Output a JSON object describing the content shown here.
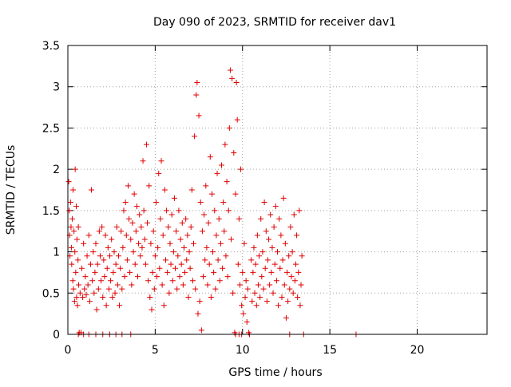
{
  "chart_data": {
    "type": "scatter",
    "title": "Day 090 of 2023, SRMTID for receiver dav1",
    "xlabel": "GPS time / hours",
    "ylabel": "SRMTID / TECUs",
    "xlim": [
      0,
      24
    ],
    "ylim": [
      0,
      3.5
    ],
    "x_ticks": [
      0,
      5,
      10,
      15,
      20
    ],
    "x_tick_labels": [
      "0",
      "5",
      "10",
      "15",
      "20"
    ],
    "y_ticks": [
      0,
      0.5,
      1,
      1.5,
      2,
      2.5,
      3,
      3.5
    ],
    "y_tick_labels": [
      "0",
      "0.5",
      "1",
      "1.5",
      "2",
      "2.5",
      "3",
      "3.5"
    ],
    "grid": true,
    "marker": "+",
    "color": "#e00000",
    "series": [
      {
        "name": "SRMTID",
        "points": [
          [
            0.05,
            1.85
          ],
          [
            0.08,
            1.5
          ],
          [
            0.1,
            1.2
          ],
          [
            0.12,
            0.95
          ],
          [
            0.15,
            1.6
          ],
          [
            0.18,
            1.3
          ],
          [
            0.2,
            1.05
          ],
          [
            0.22,
            0.85
          ],
          [
            0.25,
            1.4
          ],
          [
            0.28,
            0.65
          ],
          [
            0.3,
            1.75
          ],
          [
            0.32,
            0.55
          ],
          [
            0.35,
            1.25
          ],
          [
            0.38,
            0.4
          ],
          [
            0.4,
            1.0
          ],
          [
            0.42,
            2.0
          ],
          [
            0.45,
            0.75
          ],
          [
            0.48,
            1.55
          ],
          [
            0.5,
            0.45
          ],
          [
            0.52,
            1.15
          ],
          [
            0.55,
            0.35
          ],
          [
            0.58,
            0.9
          ],
          [
            0.6,
            1.3
          ],
          [
            0.62,
            0.6
          ],
          [
            0.65,
            0.02
          ],
          [
            0.7,
            0.5
          ],
          [
            0.75,
            0.02
          ],
          [
            0.8,
            0.8
          ],
          [
            0.85,
            0.45
          ],
          [
            0.9,
            1.1
          ],
          [
            0.95,
            0.55
          ],
          [
            1.0,
            0.7
          ],
          [
            1.05,
            0.48
          ],
          [
            1.1,
            0.95
          ],
          [
            1.15,
            0.6
          ],
          [
            1.2,
            1.2
          ],
          [
            1.25,
            0.4
          ],
          [
            1.3,
            0.85
          ],
          [
            1.35,
            1.75
          ],
          [
            1.4,
            0.65
          ],
          [
            1.45,
            1.0
          ],
          [
            1.5,
            0.5
          ],
          [
            1.55,
            0.75
          ],
          [
            1.6,
            1.1
          ],
          [
            1.65,
            0.3
          ],
          [
            1.7,
            0.85
          ],
          [
            1.75,
            0.55
          ],
          [
            1.8,
            1.25
          ],
          [
            1.85,
            0.95
          ],
          [
            1.9,
            0.65
          ],
          [
            1.95,
            1.3
          ],
          [
            2.0,
            0.45
          ],
          [
            2.05,
            0.9
          ],
          [
            2.1,
            0.7
          ],
          [
            2.15,
            1.2
          ],
          [
            2.2,
            0.35
          ],
          [
            2.25,
            0.8
          ],
          [
            2.3,
            1.05
          ],
          [
            2.35,
            0.55
          ],
          [
            2.4,
            0.95
          ],
          [
            2.45,
            0.65
          ],
          [
            2.5,
            1.15
          ],
          [
            2.55,
            0.45
          ],
          [
            2.6,
            0.75
          ],
          [
            2.65,
            1.0
          ],
          [
            2.7,
            0.5
          ],
          [
            2.75,
            0.85
          ],
          [
            2.8,
            1.3
          ],
          [
            2.85,
            0.6
          ],
          [
            2.9,
            0.95
          ],
          [
            2.95,
            0.35
          ],
          [
            3.0,
            0.8
          ],
          [
            3.05,
            1.25
          ],
          [
            3.1,
            0.55
          ],
          [
            3.15,
            1.05
          ],
          [
            3.2,
            1.5
          ],
          [
            3.25,
            0.7
          ],
          [
            3.3,
            1.6
          ],
          [
            3.35,
            1.2
          ],
          [
            3.4,
            0.9
          ],
          [
            3.45,
            1.8
          ],
          [
            3.5,
            1.4
          ],
          [
            3.55,
            0.75
          ],
          [
            3.6,
            1.15
          ],
          [
            3.65,
            0.6
          ],
          [
            3.7,
            1.35
          ],
          [
            3.75,
            1.0
          ],
          [
            3.8,
            1.7
          ],
          [
            3.85,
            0.85
          ],
          [
            3.9,
            1.25
          ],
          [
            3.95,
            1.55
          ],
          [
            4.0,
            0.7
          ],
          [
            4.05,
            1.1
          ],
          [
            4.1,
            1.45
          ],
          [
            4.15,
            0.95
          ],
          [
            4.2,
            1.3
          ],
          [
            4.25,
            1.05
          ],
          [
            4.3,
            2.1
          ],
          [
            4.35,
            1.5
          ],
          [
            4.4,
            1.15
          ],
          [
            4.45,
            0.85
          ],
          [
            4.5,
            2.3
          ],
          [
            4.55,
            1.35
          ],
          [
            4.6,
            0.65
          ],
          [
            4.65,
            1.8
          ],
          [
            4.7,
            0.45
          ],
          [
            4.75,
            1.1
          ],
          [
            4.8,
            0.3
          ],
          [
            4.85,
            0.75
          ],
          [
            4.9,
            1.25
          ],
          [
            4.95,
            0.55
          ],
          [
            5.0,
            0.95
          ],
          [
            5.05,
            1.6
          ],
          [
            5.1,
            0.7
          ],
          [
            5.15,
            1.05
          ],
          [
            5.2,
            1.95
          ],
          [
            5.25,
            0.8
          ],
          [
            5.3,
            1.4
          ],
          [
            5.35,
            2.1
          ],
          [
            5.4,
            0.6
          ],
          [
            5.45,
            1.2
          ],
          [
            5.5,
            0.35
          ],
          [
            5.55,
            1.75
          ],
          [
            5.6,
            0.9
          ],
          [
            5.65,
            1.5
          ],
          [
            5.7,
            0.75
          ],
          [
            5.75,
            1.3
          ],
          [
            5.8,
            0.5
          ],
          [
            5.85,
            1.1
          ],
          [
            5.9,
            0.85
          ],
          [
            5.95,
            1.45
          ],
          [
            6.0,
            0.65
          ],
          [
            6.05,
            1.0
          ],
          [
            6.1,
            1.65
          ],
          [
            6.15,
            0.8
          ],
          [
            6.2,
            1.25
          ],
          [
            6.25,
            0.55
          ],
          [
            6.3,
            0.95
          ],
          [
            6.35,
            1.5
          ],
          [
            6.4,
            0.7
          ],
          [
            6.45,
            1.15
          ],
          [
            6.5,
            0.85
          ],
          [
            6.55,
            1.35
          ],
          [
            6.6,
            0.6
          ],
          [
            6.65,
            1.05
          ],
          [
            6.7,
            0.75
          ],
          [
            6.75,
            1.4
          ],
          [
            6.8,
            0.9
          ],
          [
            6.85,
            1.2
          ],
          [
            6.9,
            0.45
          ],
          [
            6.95,
            1.0
          ],
          [
            7.0,
            0.8
          ],
          [
            7.05,
            1.3
          ],
          [
            7.1,
            1.75
          ],
          [
            7.15,
            0.65
          ],
          [
            7.2,
            1.1
          ],
          [
            7.25,
            2.4
          ],
          [
            7.3,
            0.55
          ],
          [
            7.35,
            2.9
          ],
          [
            7.4,
            3.05
          ],
          [
            7.45,
            0.25
          ],
          [
            7.5,
            2.65
          ],
          [
            7.55,
            0.4
          ],
          [
            7.6,
            1.6
          ],
          [
            7.65,
            0.05
          ],
          [
            7.7,
            1.25
          ],
          [
            7.75,
            0.7
          ],
          [
            7.8,
            1.45
          ],
          [
            7.85,
            0.9
          ],
          [
            7.9,
            1.8
          ],
          [
            7.95,
            1.05
          ],
          [
            8.0,
            0.6
          ],
          [
            8.05,
            1.35
          ],
          [
            8.1,
            0.85
          ],
          [
            8.15,
            2.15
          ],
          [
            8.2,
            0.45
          ],
          [
            8.25,
            1.7
          ],
          [
            8.3,
            1.0
          ],
          [
            8.35,
            0.75
          ],
          [
            8.4,
            1.5
          ],
          [
            8.45,
            0.55
          ],
          [
            8.5,
            1.2
          ],
          [
            8.55,
            1.95
          ],
          [
            8.6,
            0.9
          ],
          [
            8.65,
            1.4
          ],
          [
            8.7,
            0.65
          ],
          [
            8.75,
            1.1
          ],
          [
            8.8,
            2.05
          ],
          [
            8.85,
            0.8
          ],
          [
            8.9,
            1.6
          ],
          [
            8.95,
            1.25
          ],
          [
            9.0,
            2.3
          ],
          [
            9.05,
            0.95
          ],
          [
            9.1,
            1.85
          ],
          [
            9.15,
            0.7
          ],
          [
            9.2,
            1.5
          ],
          [
            9.25,
            2.5
          ],
          [
            9.3,
            3.2
          ],
          [
            9.35,
            1.15
          ],
          [
            9.4,
            3.1
          ],
          [
            9.45,
            0.5
          ],
          [
            9.5,
            2.2
          ],
          [
            9.55,
            0.02
          ],
          [
            9.6,
            1.7
          ],
          [
            9.65,
            3.05
          ],
          [
            9.7,
            2.6
          ],
          [
            9.75,
            0.85
          ],
          [
            9.8,
            1.4
          ],
          [
            9.85,
            0.6
          ],
          [
            9.9,
            2.0
          ],
          [
            9.95,
            0.35
          ],
          [
            10.0,
            0.75
          ],
          [
            10.05,
            0.25
          ],
          [
            10.1,
            1.1
          ],
          [
            10.15,
            0.45
          ],
          [
            10.2,
            0.65
          ],
          [
            10.25,
            0.15
          ],
          [
            10.3,
            0.55
          ],
          [
            10.35,
            0.02
          ],
          [
            10.5,
            0.9
          ],
          [
            10.55,
            0.4
          ],
          [
            10.6,
            0.75
          ],
          [
            10.65,
            1.05
          ],
          [
            10.7,
            0.5
          ],
          [
            10.75,
            0.85
          ],
          [
            10.8,
            0.35
          ],
          [
            10.85,
            1.2
          ],
          [
            10.9,
            0.6
          ],
          [
            10.95,
            0.95
          ],
          [
            11.0,
            0.45
          ],
          [
            11.05,
            1.4
          ],
          [
            11.1,
            0.7
          ],
          [
            11.15,
            1.0
          ],
          [
            11.2,
            0.55
          ],
          [
            11.25,
            1.6
          ],
          [
            11.3,
            0.8
          ],
          [
            11.35,
            1.25
          ],
          [
            11.4,
            0.4
          ],
          [
            11.45,
            0.9
          ],
          [
            11.5,
            1.15
          ],
          [
            11.55,
            0.6
          ],
          [
            11.6,
            1.45
          ],
          [
            11.65,
            0.75
          ],
          [
            11.7,
            1.05
          ],
          [
            11.75,
            0.5
          ],
          [
            11.8,
            1.3
          ],
          [
            11.85,
            0.85
          ],
          [
            11.9,
            1.55
          ],
          [
            11.95,
            0.65
          ],
          [
            12.0,
            1.0
          ],
          [
            12.05,
            0.35
          ],
          [
            12.1,
            1.4
          ],
          [
            12.15,
            0.8
          ],
          [
            12.2,
            1.2
          ],
          [
            12.25,
            0.45
          ],
          [
            12.3,
            0.9
          ],
          [
            12.35,
            1.65
          ],
          [
            12.4,
            0.6
          ],
          [
            12.45,
            1.1
          ],
          [
            12.5,
            0.2
          ],
          [
            12.55,
            0.75
          ],
          [
            12.6,
            0.4
          ],
          [
            12.65,
            0.95
          ],
          [
            12.7,
            0.55
          ],
          [
            12.75,
            1.3
          ],
          [
            12.8,
            0.7
          ],
          [
            12.85,
            1.0
          ],
          [
            12.9,
            0.5
          ],
          [
            12.95,
            1.45
          ],
          [
            13.0,
            0.65
          ],
          [
            13.05,
            0.85
          ],
          [
            13.1,
            1.2
          ],
          [
            13.15,
            0.45
          ],
          [
            13.2,
            0.75
          ],
          [
            13.25,
            1.5
          ],
          [
            13.3,
            0.35
          ],
          [
            13.35,
            0.6
          ],
          [
            13.4,
            0.95
          ],
          [
            0.6,
            0.0
          ],
          [
            0.9,
            0.0
          ],
          [
            1.2,
            0.0
          ],
          [
            1.6,
            0.0
          ],
          [
            2.0,
            0.0
          ],
          [
            2.4,
            0.0
          ],
          [
            2.75,
            0.0
          ],
          [
            3.1,
            0.0
          ],
          [
            3.6,
            0.0
          ],
          [
            9.6,
            0.0
          ],
          [
            9.8,
            0.0
          ],
          [
            9.95,
            0.0
          ],
          [
            10.4,
            0.0
          ],
          [
            12.7,
            0.0
          ],
          [
            13.5,
            0.0
          ],
          [
            16.5,
            0.0
          ]
        ]
      }
    ]
  }
}
